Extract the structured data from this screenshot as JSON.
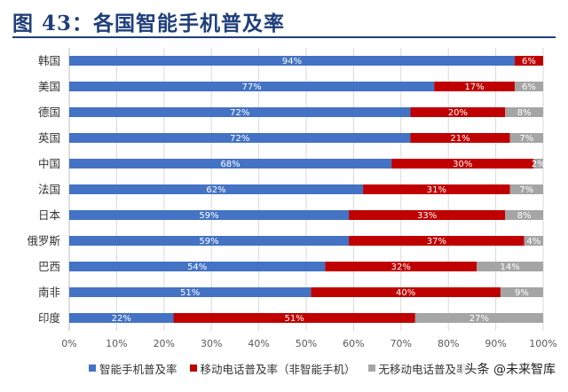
{
  "title": "图 43：各国智能手机普及率",
  "watermark": "头条 @未来智库",
  "colors": {
    "smartphone": "#4472c4",
    "mobile": "#c00000",
    "none": "#a5a5a5",
    "title": "#1f3f7a"
  },
  "chart_data": {
    "type": "bar",
    "orientation": "horizontal",
    "stacked": true,
    "categories": [
      "韩国",
      "美国",
      "德国",
      "英国",
      "中国",
      "法国",
      "日本",
      "俄罗斯",
      "巴西",
      "南非",
      "印度"
    ],
    "series": [
      {
        "name": "智能手机普及率",
        "values": [
          94,
          77,
          72,
          72,
          68,
          62,
          59,
          59,
          54,
          51,
          22
        ],
        "labels": [
          "94%",
          "77%",
          "72%",
          "72%",
          "68%",
          "62%",
          "59%",
          "59%",
          "54%",
          "51%",
          "22%"
        ]
      },
      {
        "name": "移动电话普及率（非智能手机）",
        "values": [
          6,
          17,
          20,
          21,
          30,
          31,
          33,
          37,
          32,
          40,
          51
        ],
        "labels": [
          "6%",
          "17%",
          "20%",
          "21%",
          "30%",
          "31%",
          "33%",
          "37%",
          "32%",
          "40%",
          "51%"
        ]
      },
      {
        "name": "无移动电话普及率",
        "values": [
          0,
          6,
          8,
          7,
          2,
          7,
          8,
          4,
          14,
          9,
          27
        ],
        "labels": [
          "",
          "6%",
          "8%",
          "7%",
          "2%",
          "7%",
          "8%",
          "4%",
          "14%",
          "9%",
          "27%"
        ]
      }
    ],
    "xlim": [
      0,
      100
    ],
    "xticks": [
      "0%",
      "10%",
      "20%",
      "30%",
      "40%",
      "50%",
      "60%",
      "70%",
      "80%",
      "90%",
      "100%"
    ],
    "grid": true,
    "legend_position": "bottom"
  }
}
